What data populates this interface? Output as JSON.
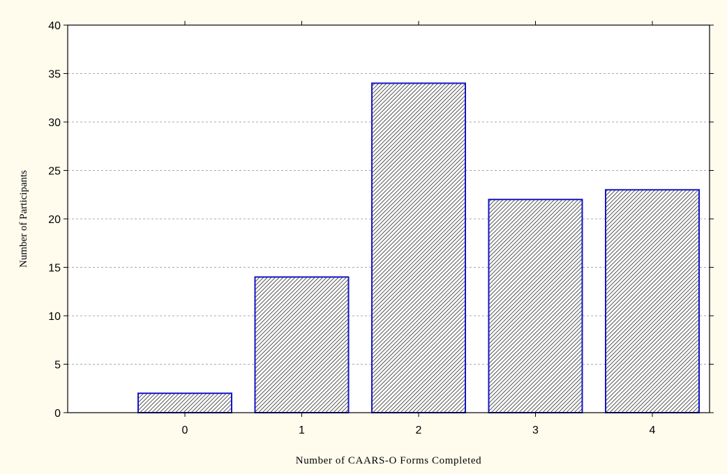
{
  "chart_data": {
    "type": "bar",
    "categories": [
      "0",
      "1",
      "2",
      "3",
      "4"
    ],
    "values": [
      2,
      14,
      34,
      22,
      23
    ],
    "title": "",
    "xlabel": "Number of CAARS-O Forms Completed",
    "ylabel": "Number of Participants",
    "ylim": [
      0,
      40
    ],
    "yticks": [
      "0",
      "5",
      "10",
      "15",
      "20",
      "25",
      "30",
      "35",
      "40"
    ],
    "grid": true,
    "legend": "none"
  },
  "colors": {
    "background": "#fffcee",
    "plot_background": "#ffffff",
    "bar_edge": "#1515c8",
    "bar_hatch": "#2a2a2a",
    "grid": "#a8a8a8",
    "axis": "#000000"
  }
}
